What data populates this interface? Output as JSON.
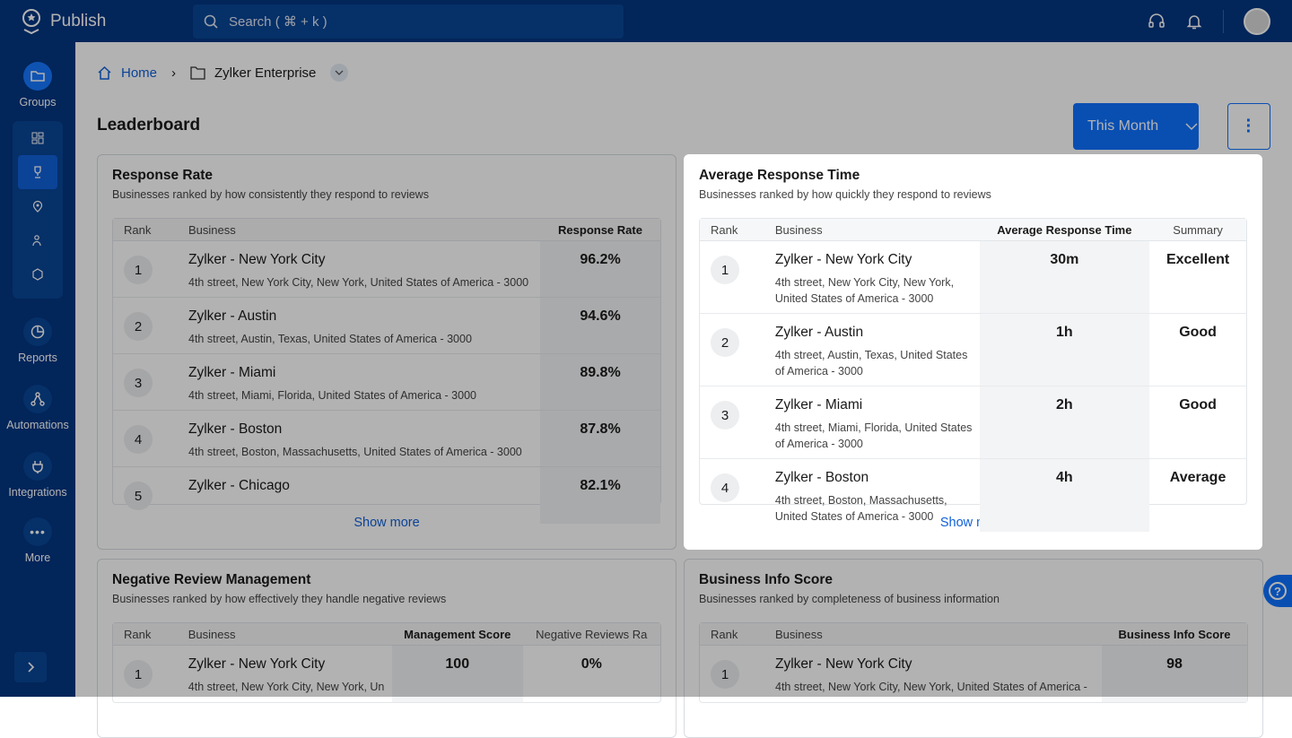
{
  "app": {
    "title": "Publish",
    "search_placeholder": "Search ( ⌘ + k )"
  },
  "sidebar": {
    "groups": "Groups",
    "reports": "Reports",
    "automations": "Automations",
    "integrations": "Integrations",
    "more": "More"
  },
  "breadcrumb": {
    "home": "Home",
    "current": "Zylker Enterprise"
  },
  "page": {
    "title": "Leaderboard",
    "period": "This Month"
  },
  "response_rate": {
    "title": "Response Rate",
    "subtitle": "Businesses ranked by how consistently they respond to reviews",
    "headers": [
      "Rank",
      "Business",
      "Response Rate"
    ],
    "show_more": "Show more",
    "rows": [
      {
        "rank": "1",
        "name": "Zylker - New York City",
        "address": "4th street, New York City, New York, United States of America - 3000",
        "value": "96.2%"
      },
      {
        "rank": "2",
        "name": "Zylker - Austin",
        "address": "4th street, Austin, Texas, United States of America - 3000",
        "value": "94.6%"
      },
      {
        "rank": "3",
        "name": "Zylker - Miami",
        "address": "4th street, Miami, Florida, United States of America - 3000",
        "value": "89.8%"
      },
      {
        "rank": "4",
        "name": "Zylker - Boston",
        "address": "4th street, Boston, Massachusetts, United States of America - 3000",
        "value": "87.8%"
      },
      {
        "rank": "5",
        "name": "Zylker - Chicago",
        "address": "",
        "value": "82.1%"
      }
    ]
  },
  "avg_response": {
    "title": "Average Response Time",
    "subtitle": "Businesses ranked by how quickly they respond to reviews",
    "headers": [
      "Rank",
      "Business",
      "Average Response Time",
      "Summary"
    ],
    "show_more": "Show more",
    "rows": [
      {
        "rank": "1",
        "name": "Zylker - New York City",
        "address": "4th street, New York City, New York, United States of America - 3000",
        "value": "30m",
        "summary": "Excellent"
      },
      {
        "rank": "2",
        "name": "Zylker - Austin",
        "address": "4th street, Austin, Texas, United States of America - 3000",
        "value": "1h",
        "summary": "Good"
      },
      {
        "rank": "3",
        "name": "Zylker - Miami",
        "address": "4th street, Miami, Florida, United States of America - 3000",
        "value": "2h",
        "summary": "Good"
      },
      {
        "rank": "4",
        "name": "Zylker - Boston",
        "address": "4th street, Boston, Massachusetts, United States of America - 3000",
        "value": "4h",
        "summary": "Average"
      }
    ]
  },
  "negative": {
    "title": "Negative Review Management",
    "subtitle": "Businesses ranked by how effectively they handle negative reviews",
    "headers": [
      "Rank",
      "Business",
      "Management Score",
      "Negative Reviews Ra"
    ],
    "rows": [
      {
        "rank": "1",
        "name": "Zylker - New York City",
        "address": "4th street, New York City, New York, Un",
        "value": "100",
        "value2": "0%"
      }
    ]
  },
  "info_score": {
    "title": "Business Info Score",
    "subtitle": "Businesses ranked by completeness of business information",
    "headers": [
      "Rank",
      "Business",
      "Business Info Score"
    ],
    "rows": [
      {
        "rank": "1",
        "name": "Zylker - New York City",
        "address": "4th street, New York City, New York, United States of America -",
        "value": "98"
      }
    ]
  }
}
